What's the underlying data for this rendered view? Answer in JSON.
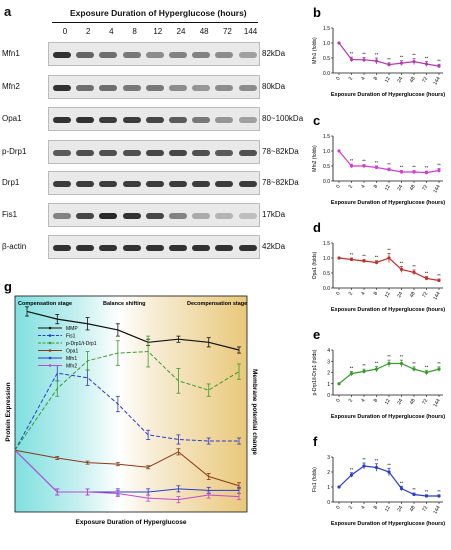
{
  "panel_a": {
    "letter": "a",
    "title": "Exposure Duration of Hyperglucose (hours)",
    "timepoints": [
      "0",
      "2",
      "4",
      "8",
      "12",
      "24",
      "48",
      "72",
      "144"
    ],
    "blots": [
      {
        "name": "Mfn1",
        "kda": "82kDa",
        "intensity": [
          0.9,
          0.65,
          0.6,
          0.55,
          0.45,
          0.5,
          0.5,
          0.45,
          0.35
        ]
      },
      {
        "name": "Mfn2",
        "kda": "80kDa",
        "intensity": [
          0.9,
          0.6,
          0.6,
          0.55,
          0.55,
          0.45,
          0.4,
          0.45,
          0.45
        ]
      },
      {
        "name": "Opa1",
        "kda": "80~100kDa",
        "intensity": [
          0.9,
          0.9,
          0.85,
          0.85,
          0.8,
          0.7,
          0.55,
          0.4,
          0.35
        ]
      },
      {
        "name": "p-Drp1",
        "kda": "78~82kDa",
        "intensity": [
          0.7,
          0.75,
          0.75,
          0.75,
          0.8,
          0.8,
          0.75,
          0.7,
          0.75
        ]
      },
      {
        "name": "Drp1",
        "kda": "78~82kDa",
        "intensity": [
          0.85,
          0.85,
          0.85,
          0.85,
          0.85,
          0.85,
          0.85,
          0.85,
          0.85
        ]
      },
      {
        "name": "Fis1",
        "kda": "17kDa",
        "intensity": [
          0.5,
          0.8,
          0.95,
          0.9,
          0.8,
          0.5,
          0.3,
          0.25,
          0.2
        ]
      },
      {
        "name": "β-actin",
        "kda": "42kDa",
        "intensity": [
          0.9,
          0.9,
          0.9,
          0.9,
          0.9,
          0.9,
          0.9,
          0.9,
          0.9
        ]
      }
    ]
  },
  "small_charts_common": {
    "xlabel": "Exposure Duration of Hyperglucose (hours)",
    "ticks": [
      "0",
      "2",
      "4",
      "8",
      "12",
      "24",
      "48",
      "72",
      "144"
    ],
    "sig": "**"
  },
  "chart_data": [
    {
      "id": "b",
      "type": "line",
      "letter": "b",
      "ylabel": "Mfn1 (folds)",
      "color": "#b23cb2",
      "x": [
        "0",
        "2",
        "4",
        "8",
        "12",
        "24",
        "48",
        "72",
        "144"
      ],
      "values": [
        1.0,
        0.45,
        0.44,
        0.4,
        0.28,
        0.33,
        0.38,
        0.3,
        0.23
      ],
      "errors": [
        0,
        0.08,
        0.08,
        0.1,
        0.06,
        0.08,
        0.1,
        0.08,
        0.06
      ],
      "ylim": [
        0,
        1.5
      ],
      "yticks": [
        "0.0",
        "0.5",
        "1.0",
        "1.5"
      ]
    },
    {
      "id": "c",
      "type": "line",
      "letter": "c",
      "ylabel": "Mfn2 (folds)",
      "color": "#d03cd0",
      "x": [
        "0",
        "2",
        "4",
        "8",
        "12",
        "24",
        "48",
        "72",
        "144"
      ],
      "values": [
        1.0,
        0.5,
        0.5,
        0.45,
        0.38,
        0.3,
        0.3,
        0.28,
        0.35
      ],
      "errors": [
        0,
        0.06,
        0.05,
        0.05,
        0.05,
        0.05,
        0.05,
        0.05,
        0.07
      ],
      "ylim": [
        0,
        1.5
      ],
      "yticks": [
        "0.0",
        "0.5",
        "1.0",
        "1.5"
      ]
    },
    {
      "id": "d",
      "type": "line",
      "letter": "d",
      "ylabel": "Opa1 (folds)",
      "color": "#c0302a",
      "x": [
        "0",
        "2",
        "4",
        "8",
        "12",
        "24",
        "48",
        "72",
        "144"
      ],
      "values": [
        1.0,
        0.95,
        0.9,
        0.85,
        1.0,
        0.62,
        0.52,
        0.32,
        0.25
      ],
      "errors": [
        0,
        0.05,
        0.05,
        0.06,
        0.15,
        0.1,
        0.08,
        0.06,
        0.05
      ],
      "ylim": [
        0,
        1.5
      ],
      "yticks": [
        "0.0",
        "0.5",
        "1.0",
        "1.5"
      ]
    },
    {
      "id": "e",
      "type": "line",
      "letter": "e",
      "ylabel": "p-Drp1/t-Drp1 (folds)",
      "color": "#3a9a30",
      "x": [
        "0",
        "2",
        "4",
        "8",
        "12",
        "24",
        "48",
        "72",
        "144"
      ],
      "values": [
        1.0,
        1.9,
        2.1,
        2.3,
        2.8,
        2.8,
        2.3,
        2.0,
        2.3
      ],
      "errors": [
        0,
        0.2,
        0.2,
        0.25,
        0.3,
        0.3,
        0.2,
        0.2,
        0.2
      ],
      "ylim": [
        0,
        4
      ],
      "yticks": [
        "0",
        "1",
        "2",
        "3",
        "4"
      ]
    },
    {
      "id": "f",
      "type": "line",
      "letter": "f",
      "ylabel": "Fis1 (folds)",
      "color": "#2a3ccc",
      "x": [
        "0",
        "2",
        "4",
        "8",
        "12",
        "24",
        "48",
        "72",
        "144"
      ],
      "values": [
        1.0,
        1.8,
        2.4,
        2.3,
        2.0,
        0.9,
        0.5,
        0.4,
        0.4
      ],
      "errors": [
        0,
        0.15,
        0.2,
        0.25,
        0.25,
        0.15,
        0.1,
        0.08,
        0.08
      ],
      "ylim": [
        0,
        3
      ],
      "yticks": [
        "0",
        "1",
        "2",
        "3"
      ]
    },
    {
      "id": "g",
      "type": "line",
      "letter": "g",
      "stages": [
        "Compensation stage",
        "Balance shifting",
        "Decompensation stage"
      ],
      "ylabel_left": "Protein Expression",
      "ylabel_right": "Membrane potential change",
      "xlabel": "Exposure Duration of Hyperglucose",
      "series": [
        {
          "name": "MMP",
          "color": "#111111",
          "dash": false,
          "values": [
            0.95,
            0.9,
            0.87,
            0.83,
            0.75,
            0.77,
            0.75,
            0.7
          ],
          "errors": [
            0.03,
            0.03,
            0.04,
            0.04,
            0.02,
            0.02,
            0.03,
            0.02
          ]
        },
        {
          "name": "Fis1",
          "color": "#2a3ccc",
          "dash": true,
          "values": [
            0.05,
            0.55,
            0.52,
            0.35,
            0.15,
            0.12,
            0.11,
            0.11
          ],
          "errors": [
            0,
            0.05,
            0.05,
            0.05,
            0.03,
            0.03,
            0.02,
            0.02
          ]
        },
        {
          "name": "p-Drp1/t-Drp1",
          "color": "#3a9a30",
          "dash": true,
          "values": [
            0.05,
            0.45,
            0.63,
            0.68,
            0.69,
            0.5,
            0.44,
            0.56
          ],
          "errors": [
            0,
            0.05,
            0.06,
            0.08,
            0.1,
            0.08,
            0.04,
            0.05
          ]
        },
        {
          "name": "Opa1",
          "color": "#8b3a1a",
          "dash": false,
          "values": [
            0.05,
            0.0,
            -0.03,
            -0.04,
            -0.06,
            0.04,
            -0.12,
            -0.18
          ],
          "errors": [
            0,
            0.01,
            0.01,
            0.01,
            0.01,
            0.02,
            0.02,
            0.02
          ]
        },
        {
          "name": "Mfn1",
          "color": "#2a3ccc",
          "dash": false,
          "values": [
            0.05,
            -0.22,
            -0.22,
            -0.22,
            -0.22,
            -0.2,
            -0.21,
            -0.21
          ],
          "errors": [
            0,
            0.02,
            0.02,
            0.02,
            0.02,
            0.02,
            0.02,
            0.02
          ]
        },
        {
          "name": "Mfn2",
          "color": "#c04ad0",
          "dash": false,
          "values": [
            0.05,
            -0.22,
            -0.22,
            -0.23,
            -0.26,
            -0.27,
            -0.24,
            -0.25
          ],
          "errors": [
            0,
            0.02,
            0.02,
            0.02,
            0.02,
            0.02,
            0.02,
            0.02
          ]
        }
      ]
    }
  ]
}
